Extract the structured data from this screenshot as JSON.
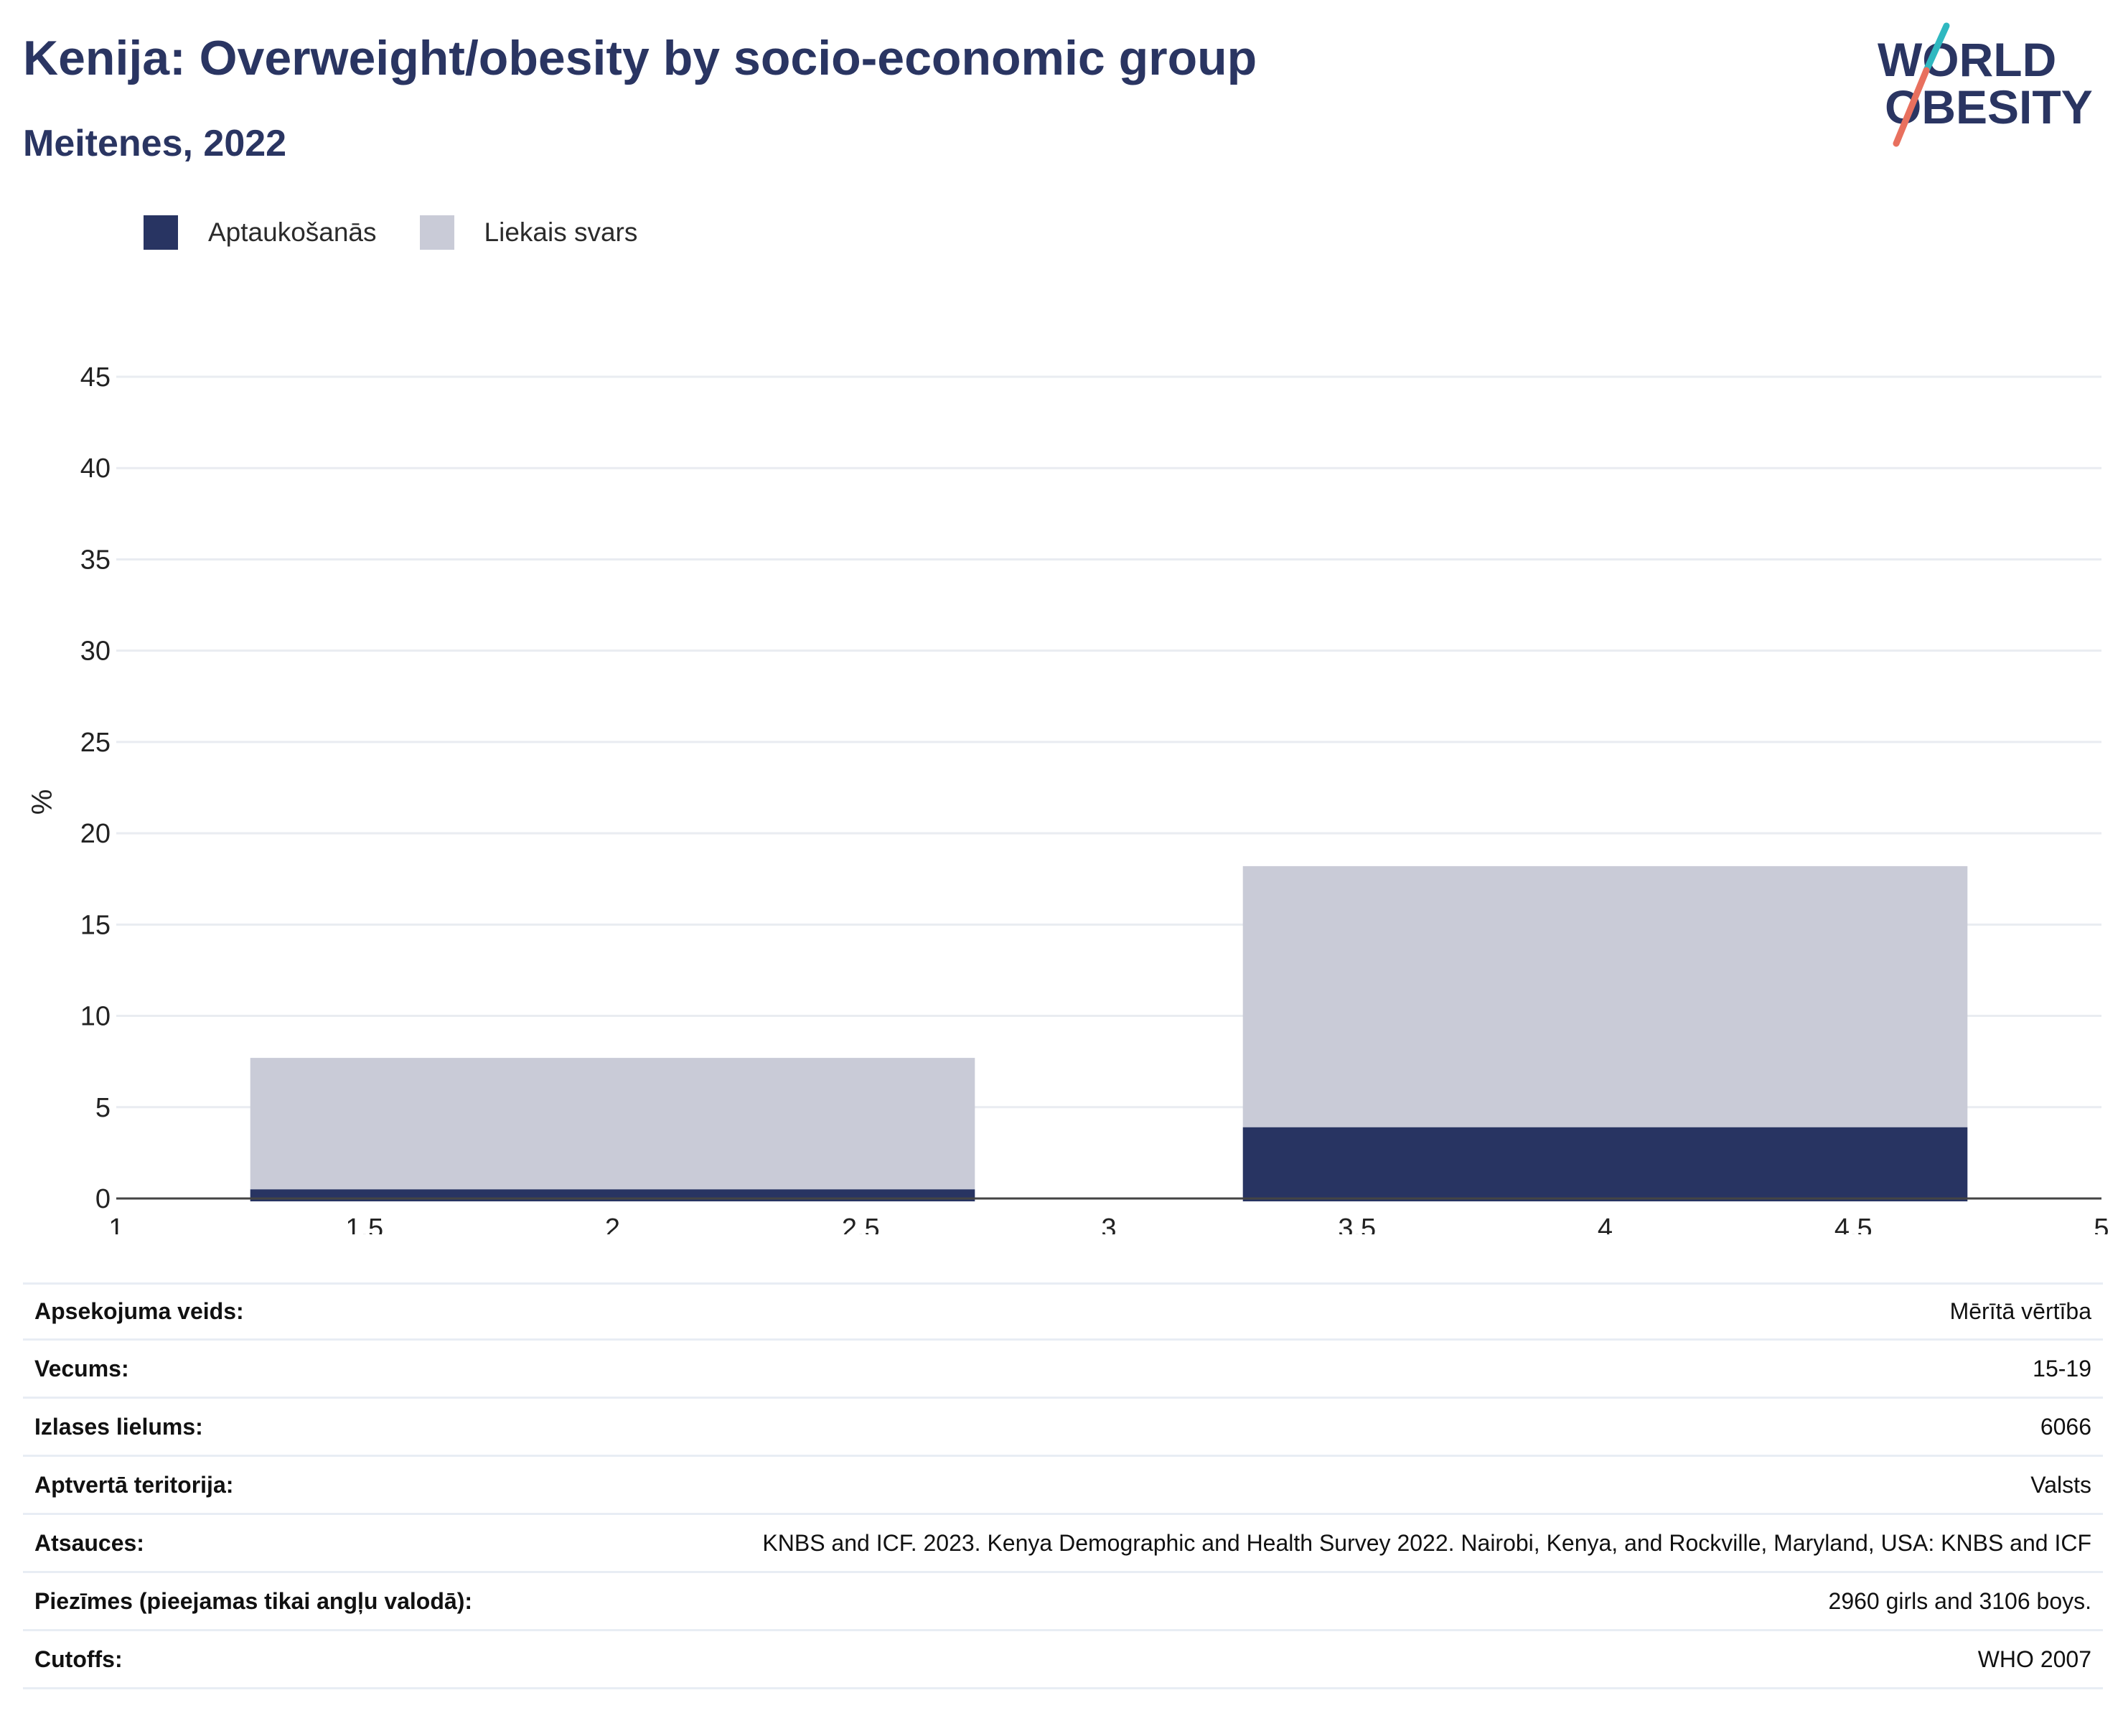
{
  "title": "Kenija: Overweight/obesity by socio-economic group",
  "subtitle": "Meitenes, 2022",
  "logo": {
    "line1": "WORLD",
    "line2": "OBESITY"
  },
  "legend": [
    {
      "label": "Aptaukošanās",
      "color": "#283462"
    },
    {
      "label": "Liekais svars",
      "color": "#c9cbd7"
    }
  ],
  "chart_data": {
    "type": "bar",
    "stacked": true,
    "ylabel": "%",
    "xlabel": "",
    "ylim": [
      0,
      45
    ],
    "xlim": [
      1,
      5
    ],
    "yticks": [
      0,
      5,
      10,
      15,
      20,
      25,
      30,
      35,
      40,
      45
    ],
    "xticks": [
      1,
      1.5,
      2,
      2.5,
      3,
      3.5,
      4,
      4.5,
      5
    ],
    "grid": true,
    "legend_position": "top-left",
    "bars": [
      {
        "x_start": 1.27,
        "x_end": 2.73,
        "obesity": 0.5,
        "overweight_total": 7.7
      },
      {
        "x_start": 3.27,
        "x_end": 4.73,
        "obesity": 3.9,
        "overweight_total": 18.2
      }
    ],
    "series": [
      {
        "name": "Aptaukošanās",
        "values": [
          0.5,
          3.9
        ],
        "color": "#283462"
      },
      {
        "name": "Liekais svars",
        "values": [
          7.2,
          14.3
        ],
        "color": "#c9cbd7"
      }
    ]
  },
  "info": [
    {
      "label": "Apsekojuma veids:",
      "value": "Mērītā vērtība"
    },
    {
      "label": "Vecums:",
      "value": "15-19"
    },
    {
      "label": "Izlases lielums:",
      "value": "6066"
    },
    {
      "label": "Aptvertā teritorija:",
      "value": "Valsts"
    },
    {
      "label": "Atsauces:",
      "value": "KNBS and ICF. 2023. Kenya Demographic and Health Survey 2022. Nairobi, Kenya, and Rockville, Maryland, USA: KNBS and ICF"
    },
    {
      "label": "Piezīmes (pieejamas tikai angļu valodā):",
      "value": "2960 girls and 3106 boys."
    },
    {
      "label": "Cutoffs:",
      "value": "WHO 2007"
    }
  ]
}
